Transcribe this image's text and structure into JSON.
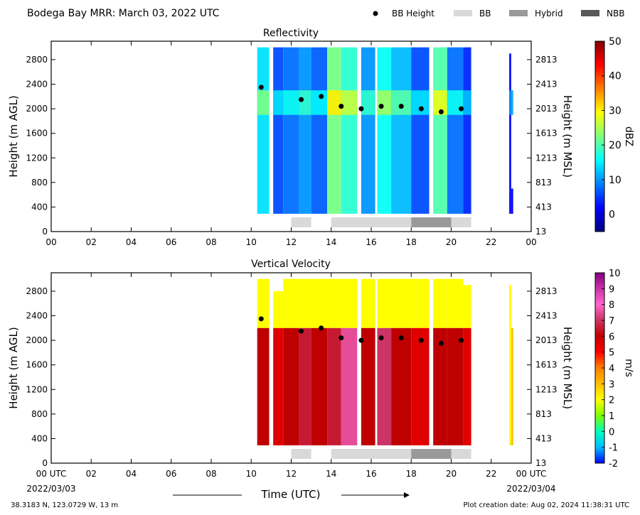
{
  "header": {
    "title": "Bodega Bay MRR:  March 03, 2022 UTC",
    "legend": [
      {
        "label": "BB Height",
        "kind": "dot",
        "color": "#000000"
      },
      {
        "label": "BB",
        "kind": "box",
        "color": "#d9d9d9"
      },
      {
        "label": "Hybrid",
        "kind": "box",
        "color": "#999999"
      },
      {
        "label": "NBB",
        "kind": "box",
        "color": "#595959"
      }
    ]
  },
  "footer": {
    "location": "38.3183 N, 123.0729 W, 13 m",
    "created": "Plot creation date: Aug 02, 2024 11:38:31 UTC",
    "start_date": "2022/03/03",
    "end_date": "2022/03/04"
  },
  "chart_data": [
    {
      "type": "heatmap",
      "title": "Reflectivity",
      "xlabel": "",
      "ylabel": "Height (m AGL)",
      "y2label": "Height (m MSL)",
      "xlim": [
        0,
        24
      ],
      "ylim": [
        0,
        3100
      ],
      "xticks": [
        "00",
        "02",
        "04",
        "06",
        "08",
        "10",
        "12",
        "14",
        "16",
        "18",
        "20",
        "22",
        "00"
      ],
      "yticks": [
        0,
        400,
        800,
        1200,
        1600,
        2000,
        2400,
        2800
      ],
      "y2ticks": [
        "13",
        "413",
        "813",
        "1213",
        "1613",
        "2013",
        "2413",
        "2813"
      ],
      "colorbar": {
        "label": "dBZ",
        "min": -5,
        "max": 50,
        "ticks": [
          0,
          10,
          20,
          30,
          40,
          50
        ],
        "colors": [
          "#00007f",
          "#0000ff",
          "#007fff",
          "#00ffff",
          "#7fff7f",
          "#ffff00",
          "#ff7f00",
          "#ff0000",
          "#7f0000"
        ]
      },
      "bb_height": [
        {
          "x": 10.5,
          "y": 2350
        },
        {
          "x": 12.5,
          "y": 2150
        },
        {
          "x": 13.5,
          "y": 2200
        },
        {
          "x": 14.5,
          "y": 2040
        },
        {
          "x": 15.5,
          "y": 2000
        },
        {
          "x": 16.5,
          "y": 2040
        },
        {
          "x": 17.5,
          "y": 2040
        },
        {
          "x": 18.5,
          "y": 2000
        },
        {
          "x": 19.5,
          "y": 1950
        },
        {
          "x": 20.5,
          "y": 2000
        }
      ],
      "bb_type_bar": [
        {
          "start": 12.0,
          "end": 13.0,
          "type": "BB"
        },
        {
          "start": 14.0,
          "end": 18.0,
          "type": "BB"
        },
        {
          "start": 18.0,
          "end": 20.0,
          "type": "Hybrid"
        },
        {
          "start": 20.0,
          "end": 21.0,
          "type": "BB"
        }
      ],
      "field_segments": [
        {
          "start": 10.3,
          "end": 10.9,
          "top": 3000,
          "value": 14
        },
        {
          "start": 11.1,
          "end": 11.6,
          "top": 3000,
          "value": 6
        },
        {
          "start": 11.6,
          "end": 12.4,
          "top": 3000,
          "value": 8
        },
        {
          "start": 12.4,
          "end": 13.0,
          "top": 3000,
          "value": 10
        },
        {
          "start": 13.0,
          "end": 13.8,
          "top": 3000,
          "value": 7
        },
        {
          "start": 13.8,
          "end": 14.5,
          "top": 3000,
          "value": 22
        },
        {
          "start": 14.5,
          "end": 15.3,
          "top": 3000,
          "value": 18
        },
        {
          "start": 15.5,
          "end": 16.2,
          "top": 3000,
          "value": 10
        },
        {
          "start": 16.3,
          "end": 17.0,
          "top": 3000,
          "value": 16
        },
        {
          "start": 17.0,
          "end": 18.0,
          "top": 3000,
          "value": 12
        },
        {
          "start": 18.0,
          "end": 18.9,
          "top": 3000,
          "value": 6
        },
        {
          "start": 19.1,
          "end": 19.8,
          "top": 3000,
          "value": 20
        },
        {
          "start": 19.8,
          "end": 20.6,
          "top": 3000,
          "value": 8
        },
        {
          "start": 20.6,
          "end": 21.0,
          "top": 3000,
          "value": 4
        },
        {
          "start": 22.9,
          "end": 23.0,
          "top": 2900,
          "value": 2
        },
        {
          "start": 23.0,
          "end": 23.1,
          "top": 700,
          "value": 2
        }
      ]
    },
    {
      "type": "heatmap",
      "title": "Vertical Velocity",
      "xlabel": "Time (UTC)",
      "ylabel": "Height (m AGL)",
      "y2label": "Height (m MSL)",
      "xlim": [
        0,
        24
      ],
      "ylim": [
        0,
        3100
      ],
      "xticks": [
        "00 UTC",
        "02",
        "04",
        "06",
        "08",
        "10",
        "12",
        "14",
        "16",
        "18",
        "20",
        "22",
        "00 UTC"
      ],
      "yticks": [
        0,
        400,
        800,
        1200,
        1600,
        2000,
        2400,
        2800
      ],
      "y2ticks": [
        "13",
        "413",
        "813",
        "1213",
        "1613",
        "2013",
        "2413",
        "2813"
      ],
      "colorbar": {
        "label": "m/s",
        "min": -2,
        "max": 10,
        "ticks": [
          "-2",
          "-1",
          "0",
          "1",
          "2",
          "3",
          "4",
          "5",
          "6",
          "7",
          "8",
          "9",
          "10"
        ],
        "colors": [
          "#0000ff",
          "#00bfff",
          "#00ffbf",
          "#7fff00",
          "#ffff00",
          "#ffbf00",
          "#ff7f00",
          "#ff0000",
          "#bf0000",
          "#cc3366",
          "#ff66cc",
          "#cc33aa",
          "#800080"
        ]
      },
      "bb_height": [
        {
          "x": 10.5,
          "y": 2350
        },
        {
          "x": 12.5,
          "y": 2150
        },
        {
          "x": 13.5,
          "y": 2200
        },
        {
          "x": 14.5,
          "y": 2040
        },
        {
          "x": 15.5,
          "y": 2000
        },
        {
          "x": 16.5,
          "y": 2040
        },
        {
          "x": 17.5,
          "y": 2040
        },
        {
          "x": 18.5,
          "y": 2000
        },
        {
          "x": 19.5,
          "y": 1950
        },
        {
          "x": 20.5,
          "y": 2000
        }
      ],
      "bb_type_bar": [
        {
          "start": 12.0,
          "end": 13.0,
          "type": "BB"
        },
        {
          "start": 14.0,
          "end": 18.0,
          "type": "BB"
        },
        {
          "start": 18.0,
          "end": 20.0,
          "type": "Hybrid"
        },
        {
          "start": 20.0,
          "end": 21.0,
          "type": "BB"
        }
      ],
      "field_segments": [
        {
          "start": 10.3,
          "end": 10.9,
          "top": 3000,
          "value": 6
        },
        {
          "start": 11.1,
          "end": 11.6,
          "top": 2800,
          "value": 5.5
        },
        {
          "start": 11.6,
          "end": 12.4,
          "top": 3000,
          "value": 6
        },
        {
          "start": 12.4,
          "end": 13.0,
          "top": 3000,
          "value": 6.5
        },
        {
          "start": 13.0,
          "end": 13.8,
          "top": 3000,
          "value": 6
        },
        {
          "start": 13.8,
          "end": 14.5,
          "top": 3000,
          "value": 6.5
        },
        {
          "start": 14.5,
          "end": 15.3,
          "top": 3000,
          "value": 7.5
        },
        {
          "start": 15.5,
          "end": 16.2,
          "top": 3000,
          "value": 6
        },
        {
          "start": 16.3,
          "end": 17.0,
          "top": 3000,
          "value": 7
        },
        {
          "start": 17.0,
          "end": 18.0,
          "top": 3000,
          "value": 6
        },
        {
          "start": 18.0,
          "end": 18.9,
          "top": 3000,
          "value": 5.5
        },
        {
          "start": 19.1,
          "end": 19.8,
          "top": 3000,
          "value": 6
        },
        {
          "start": 19.8,
          "end": 20.6,
          "top": 3000,
          "value": 6
        },
        {
          "start": 20.6,
          "end": 21.0,
          "top": 2900,
          "value": 5.5
        },
        {
          "start": 22.9,
          "end": 23.0,
          "top": 2900,
          "value": 2
        },
        {
          "start": 23.0,
          "end": 23.1,
          "top": 1300,
          "value": 3
        }
      ]
    }
  ]
}
